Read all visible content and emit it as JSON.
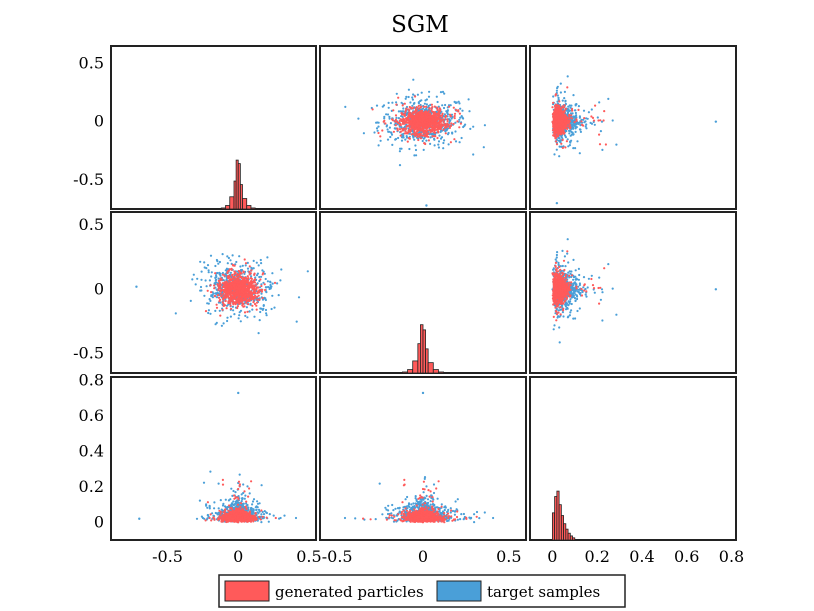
{
  "chart_data": {
    "type": "scatter",
    "title": "SGM",
    "grid": false,
    "layout": "3x3 pair plot (histograms on diagonal, scatter off-diagonal)",
    "legend_placement": "bottom-center",
    "colors": {
      "generated": "#ff5a5a",
      "target": "#4a9fd8",
      "hist_edge": "#222222"
    },
    "series": [
      {
        "name": "generated particles",
        "color": "#ff5a5a"
      },
      {
        "name": "target samples",
        "color": "#4a9fd8"
      }
    ],
    "rows": [
      {
        "ylim": [
          -0.75,
          0.65
        ],
        "yticks": [
          0.5,
          0,
          -0.5
        ],
        "ytick_labels": [
          "0.5",
          "0",
          "-0.5"
        ]
      },
      {
        "ylim": [
          -0.65,
          0.6
        ],
        "yticks": [
          0.5,
          0,
          -0.5
        ],
        "ytick_labels": [
          "0.5",
          "0",
          "-0.5"
        ]
      },
      {
        "ylim": [
          -0.1,
          0.82
        ],
        "yticks": [
          0.8,
          0.6,
          0.4,
          0.2,
          0
        ],
        "ytick_labels": [
          "0.8",
          "0.6",
          "0.4",
          "0.2",
          "0"
        ]
      }
    ],
    "columns": [
      {
        "xlim": [
          -0.9,
          0.55
        ],
        "xticks": [
          -0.5,
          0,
          0.5
        ],
        "xtick_labels": [
          "-0.5",
          "0",
          "0.5"
        ]
      },
      {
        "xlim": [
          -0.6,
          0.6
        ],
        "xticks": [
          -0.5,
          0,
          0.5
        ],
        "xtick_labels": [
          "-0.5",
          "0",
          "0.5"
        ]
      },
      {
        "xlim": [
          -0.1,
          0.82
        ],
        "xticks": [
          0,
          0.2,
          0.4,
          0.6,
          0.8
        ],
        "xtick_labels": [
          "0",
          "0.2",
          "0.4",
          "0.6",
          "0.8"
        ]
      }
    ],
    "histograms": [
      {
        "bin_edges": [
          -0.12,
          -0.09,
          -0.06,
          -0.03,
          -0.015,
          0,
          0.015,
          0.03,
          0.06,
          0.09,
          0.12
        ],
        "density": [
          0.3,
          1.0,
          3.5,
          8.0,
          14.0,
          13.0,
          7.0,
          3.0,
          1.0,
          0.3
        ]
      },
      {
        "bin_edges": [
          -0.12,
          -0.09,
          -0.06,
          -0.03,
          -0.015,
          0,
          0.015,
          0.03,
          0.06,
          0.09,
          0.12
        ],
        "density": [
          0.3,
          1.0,
          3.5,
          8.5,
          14.0,
          12.5,
          7.0,
          3.0,
          1.0,
          0.3
        ]
      },
      {
        "bin_edges": [
          0,
          0.01,
          0.02,
          0.03,
          0.04,
          0.05,
          0.06,
          0.07,
          0.08,
          0.09,
          0.1
        ],
        "density": [
          10.0,
          16.0,
          18.0,
          13.0,
          9.0,
          6.0,
          4.0,
          2.5,
          1.5,
          0.8
        ]
      }
    ],
    "scatter_summary": {
      "x1_x2": {
        "center": [
          0,
          0
        ],
        "spread_generated": [
          0.06,
          0.05
        ],
        "spread_target": [
          0.13,
          0.11
        ]
      },
      "x_r": {
        "r_base": 0.02,
        "r_scale": 0.9,
        "spread_generated": [
          0.05,
          0.05
        ],
        "spread_target": [
          0.12,
          0.12
        ]
      }
    },
    "outliers": [
      {
        "pair": "x1_x2",
        "x": 0.02,
        "y": -0.72,
        "series": "target samples"
      },
      {
        "pair": "x1_x2",
        "x": -0.72,
        "y": 0.02,
        "series": "target samples"
      },
      {
        "pair": "x_r",
        "x": 0.0,
        "r": 0.73,
        "series": "target samples"
      },
      {
        "pair": "x_r",
        "x": -0.7,
        "r": 0.02,
        "series": "target samples"
      }
    ]
  }
}
